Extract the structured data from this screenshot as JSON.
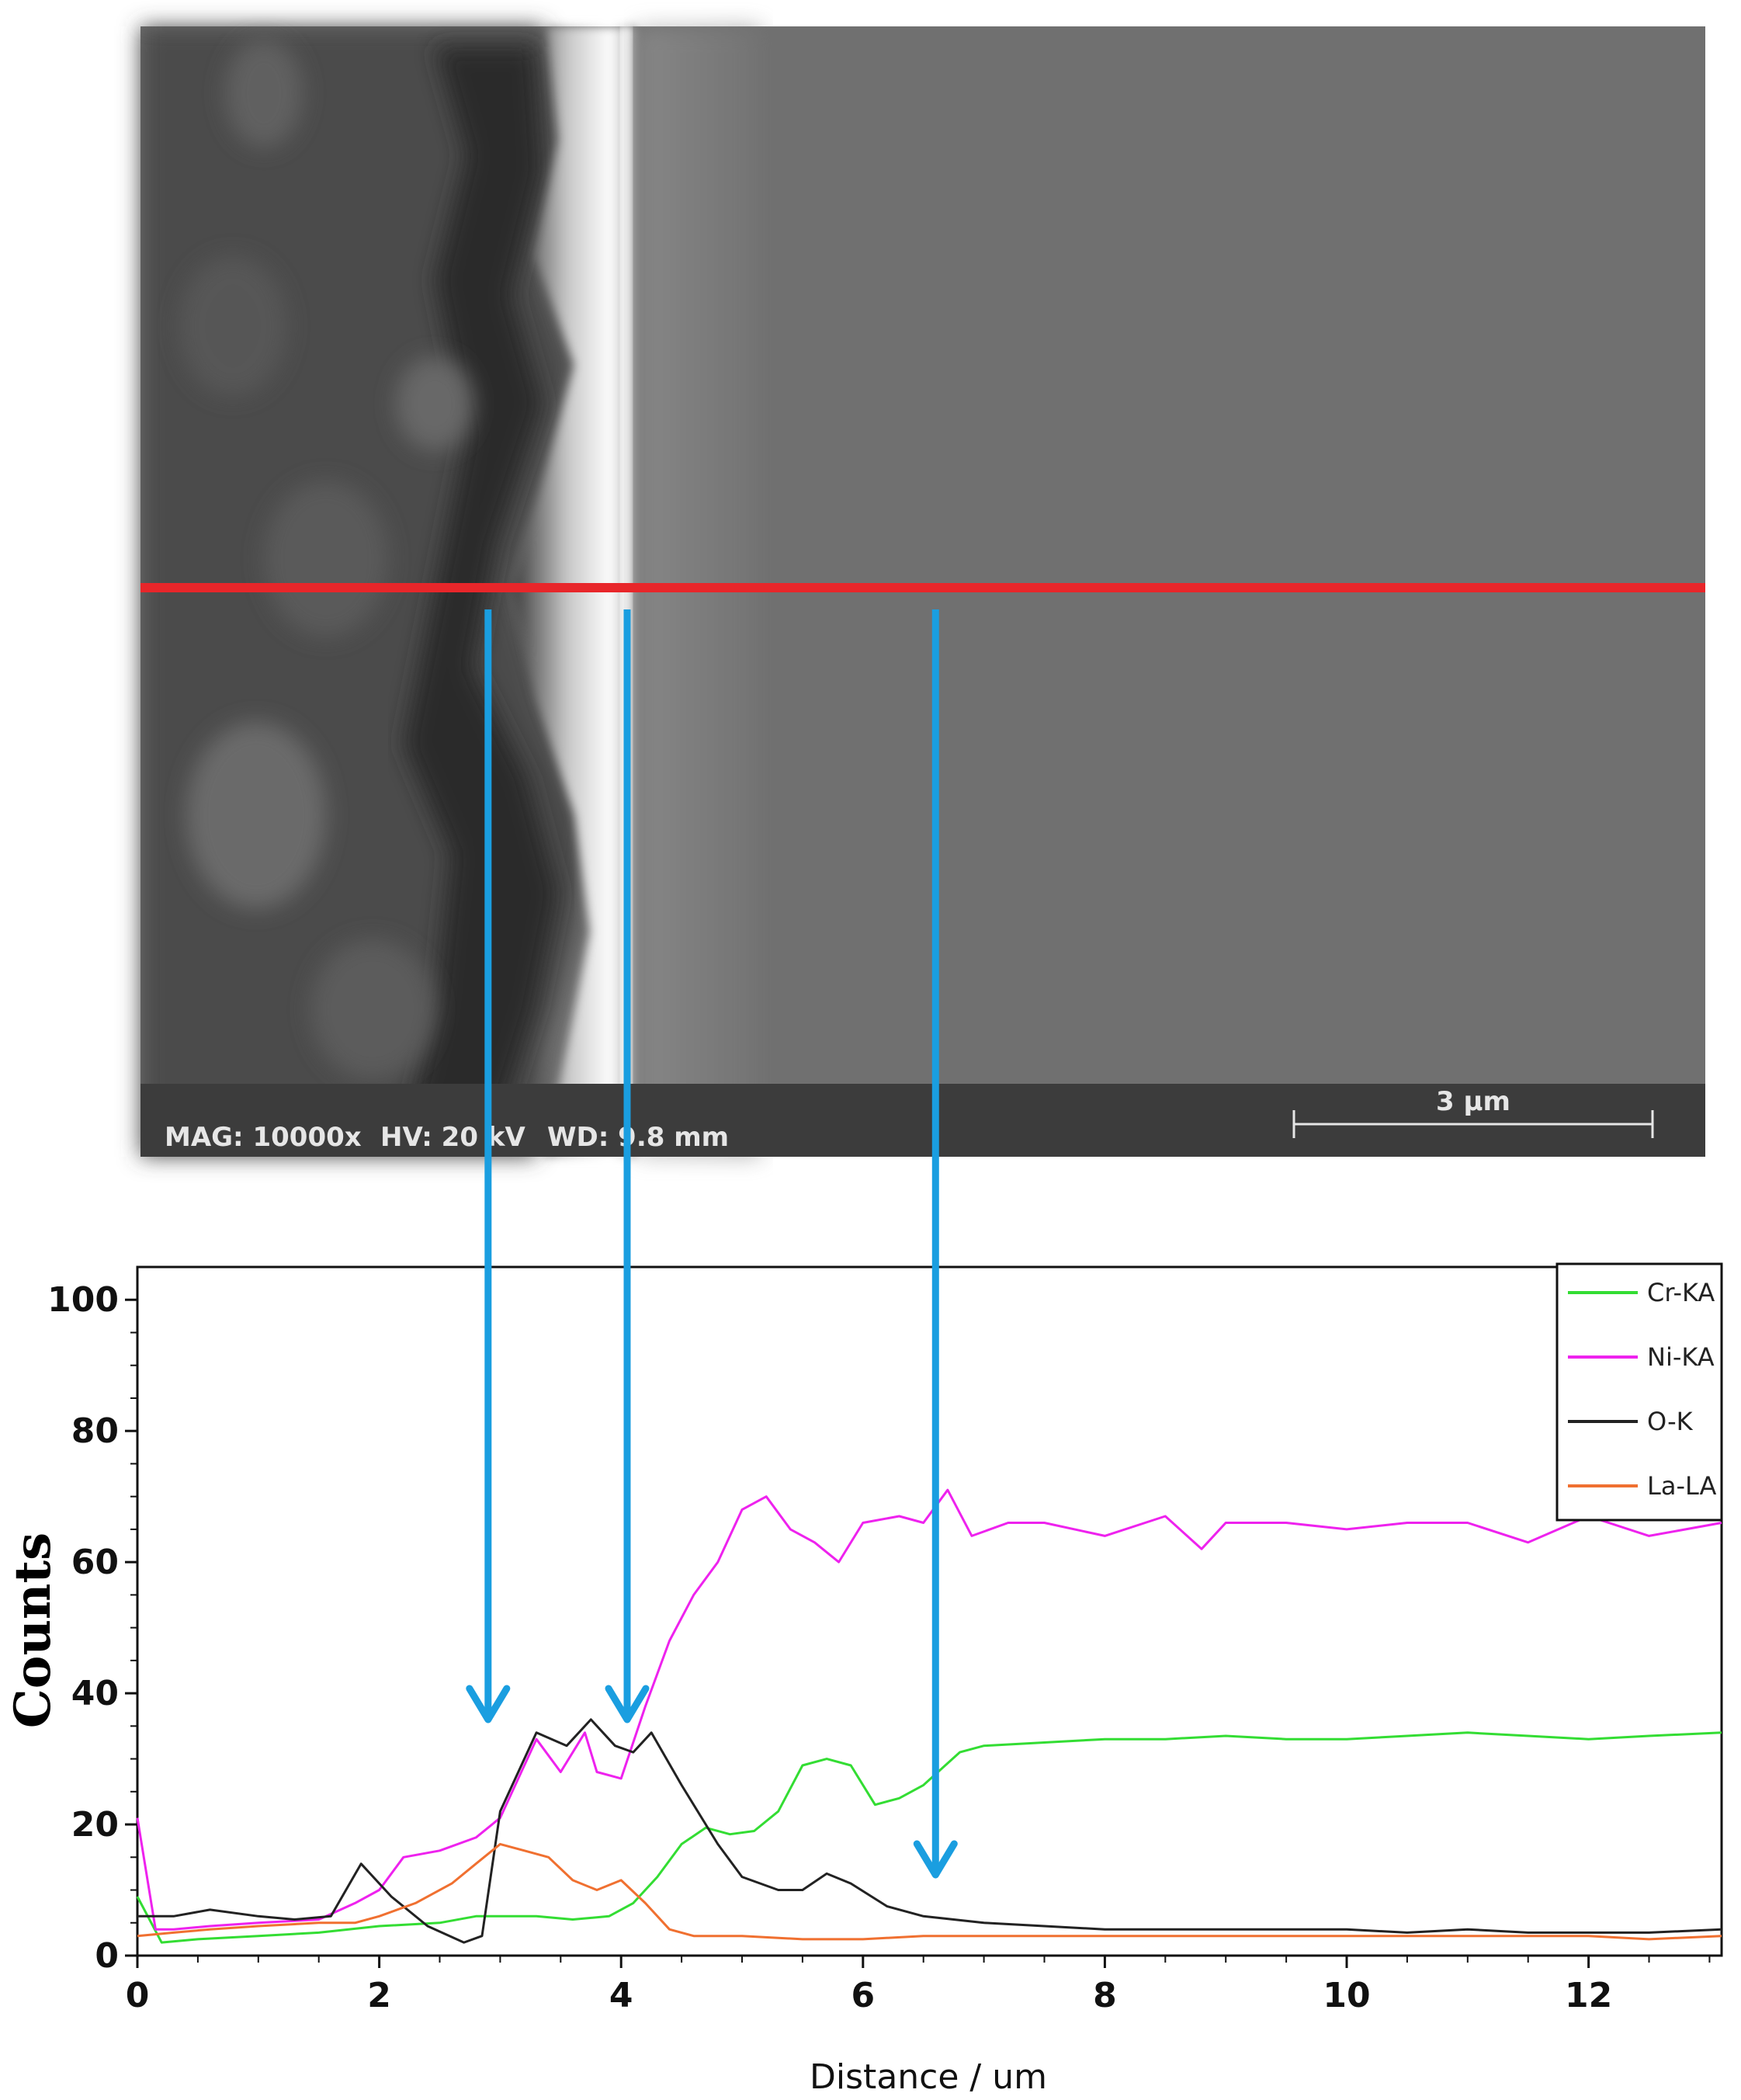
{
  "sem_image": {
    "info": {
      "mag": "MAG: 10000x",
      "hv": "HV: 20 kV",
      "wd": "WD: 9.8 mm"
    },
    "scale_bar_label": "3 µm",
    "line_color": "#e8262a",
    "arrow_color": "#1a9ee0"
  },
  "chart_data": {
    "type": "line",
    "title": "",
    "xlabel": "Distance / um",
    "ylabel": "Counts",
    "xlim": [
      0,
      13.1
    ],
    "ylim": [
      0,
      105
    ],
    "xticks": [
      0,
      2,
      4,
      6,
      8,
      10,
      12
    ],
    "yticks": [
      0,
      20,
      40,
      60,
      80,
      100
    ],
    "grid": false,
    "legend_position": "top-right",
    "arrow_x": [
      2.9,
      4.05,
      6.6
    ],
    "series": [
      {
        "name": "Cr-KA",
        "color": "#33dd33",
        "x": [
          0,
          0.2,
          0.5,
          1.0,
          1.5,
          2.0,
          2.5,
          2.8,
          3.0,
          3.3,
          3.6,
          3.9,
          4.1,
          4.3,
          4.5,
          4.7,
          4.9,
          5.1,
          5.3,
          5.5,
          5.7,
          5.9,
          6.1,
          6.3,
          6.5,
          6.8,
          7.0,
          7.5,
          8.0,
          8.5,
          9.0,
          9.5,
          10.0,
          10.5,
          11.0,
          11.5,
          12.0,
          12.5,
          13.1
        ],
        "values": [
          9,
          2,
          2.5,
          3,
          3.5,
          4.5,
          5,
          6,
          6,
          6,
          5.5,
          6,
          8,
          12,
          17,
          19.5,
          18.5,
          19,
          22,
          29,
          30,
          29,
          23,
          24,
          26,
          31,
          32,
          32.5,
          33,
          33,
          33.5,
          33,
          33,
          33.5,
          34,
          33.5,
          33,
          33.5,
          34
        ]
      },
      {
        "name": "Ni-KA",
        "color": "#ee22ee",
        "x": [
          0,
          0.15,
          0.3,
          0.6,
          1.0,
          1.5,
          1.8,
          2.0,
          2.2,
          2.5,
          2.8,
          3.0,
          3.3,
          3.5,
          3.7,
          3.8,
          4.0,
          4.2,
          4.4,
          4.6,
          4.8,
          5.0,
          5.2,
          5.4,
          5.6,
          5.8,
          6.0,
          6.3,
          6.5,
          6.7,
          6.9,
          7.2,
          7.5,
          8.0,
          8.5,
          8.8,
          9.0,
          9.5,
          10.0,
          10.5,
          11.0,
          11.5,
          12.0,
          12.5,
          13.1
        ],
        "values": [
          21,
          4,
          4,
          4.5,
          5,
          5.5,
          8,
          10,
          15,
          16,
          18,
          21,
          33,
          28,
          34,
          28,
          27,
          38,
          48,
          55,
          60,
          68,
          70,
          65,
          63,
          60,
          66,
          67,
          66,
          71,
          64,
          66,
          66,
          64,
          67,
          62,
          66,
          66,
          65,
          66,
          66,
          63,
          67,
          64,
          66
        ]
      },
      {
        "name": "O-K",
        "color": "#222222",
        "x": [
          0,
          0.3,
          0.6,
          1.0,
          1.3,
          1.6,
          1.85,
          2.1,
          2.4,
          2.7,
          2.85,
          3.0,
          3.3,
          3.55,
          3.75,
          3.95,
          4.1,
          4.25,
          4.5,
          4.8,
          5.0,
          5.3,
          5.5,
          5.7,
          5.9,
          6.2,
          6.5,
          7.0,
          7.5,
          8.0,
          8.5,
          9.0,
          9.5,
          10.0,
          10.5,
          11.0,
          11.5,
          12.0,
          12.5,
          13.1
        ],
        "values": [
          6,
          6,
          7,
          6,
          5.5,
          6,
          14,
          9,
          4.5,
          2,
          3,
          22,
          34,
          32,
          36,
          32,
          31,
          34,
          26,
          17,
          12,
          10,
          10,
          12.5,
          11,
          7.5,
          6,
          5,
          4.5,
          4,
          4,
          4,
          4,
          4,
          3.5,
          4,
          3.5,
          3.5,
          3.5,
          4
        ]
      },
      {
        "name": "La-LA",
        "color": "#f07030",
        "x": [
          0,
          0.3,
          0.6,
          1.0,
          1.5,
          1.8,
          2.0,
          2.3,
          2.6,
          2.8,
          3.0,
          3.2,
          3.4,
          3.6,
          3.8,
          4.0,
          4.2,
          4.4,
          4.6,
          5.0,
          5.5,
          6.0,
          6.5,
          7.0,
          7.5,
          8.0,
          8.5,
          9.0,
          9.5,
          10.0,
          10.5,
          11.0,
          11.5,
          12.0,
          12.5,
          13.1
        ],
        "values": [
          3,
          3.5,
          4,
          4.5,
          5,
          5,
          6,
          8,
          11,
          14,
          17,
          16,
          15,
          11.5,
          10,
          11.5,
          8,
          4,
          3,
          3,
          2.5,
          2.5,
          3,
          3,
          3,
          3,
          3,
          3,
          3,
          3,
          3,
          3,
          3,
          3,
          2.5,
          3
        ]
      }
    ]
  }
}
